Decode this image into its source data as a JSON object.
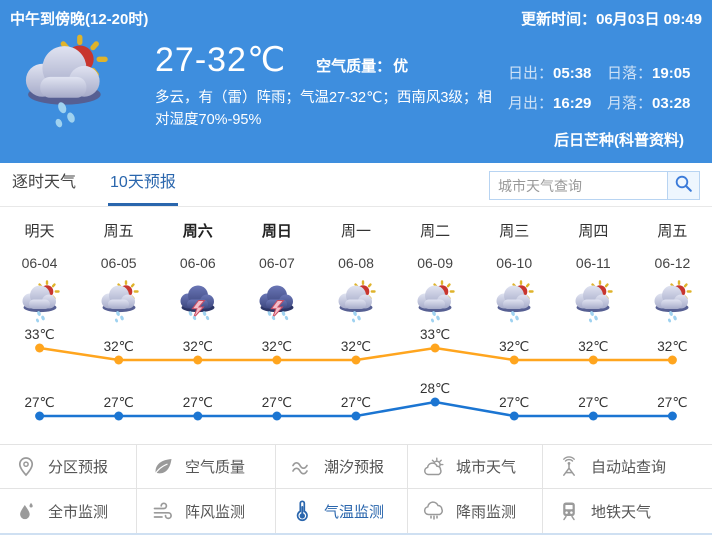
{
  "colors": {
    "header_bg": "#3e8ede",
    "accent_blue": "#2a66ad",
    "high_line": "#ffa51e",
    "low_line": "#1b75d2"
  },
  "header": {
    "period": "中午到傍晚(12-20时)",
    "update_time": "更新时间：06月03日 09:49",
    "temp_range": "27-32℃",
    "aqi_label": "空气质量：",
    "aqi_value": "优",
    "description": "多云，有（雷）阵雨；气温27-32℃；西南风3级；相对湿度70%-95%",
    "weather_icon": "cloud-sun-rain-icon",
    "sun_moon": {
      "sunrise_label": "日出：",
      "sunrise": "05:38",
      "sunset_label": "日落：",
      "sunset": "19:05",
      "moonrise_label": "月出：",
      "moonrise": "16:29",
      "moonset_label": "月落：",
      "moonset": "03:28"
    },
    "solar_term": "后日芒种(科普资料)"
  },
  "tabs": [
    {
      "key": "hourly-weather",
      "label": "逐时天气",
      "active": false
    },
    {
      "key": "ten-day-forecast",
      "label": "10天预报",
      "active": true
    }
  ],
  "search": {
    "placeholder": "城市天气查询",
    "icon": "search-icon"
  },
  "forecast": {
    "days": [
      {
        "name": "明天",
        "date": "06-04",
        "icon": "cloud-sun-rain-icon",
        "bold": false
      },
      {
        "name": "周五",
        "date": "06-05",
        "icon": "cloud-sun-rain-icon",
        "bold": false
      },
      {
        "name": "周六",
        "date": "06-06",
        "icon": "thunder-rain-icon",
        "bold": true
      },
      {
        "name": "周日",
        "date": "06-07",
        "icon": "thunder-rain-icon",
        "bold": true
      },
      {
        "name": "周一",
        "date": "06-08",
        "icon": "cloud-sun-rain-icon",
        "bold": false
      },
      {
        "name": "周二",
        "date": "06-09",
        "icon": "cloud-sun-rain-icon",
        "bold": false
      },
      {
        "name": "周三",
        "date": "06-10",
        "icon": "cloud-sun-rain-icon",
        "bold": false
      },
      {
        "name": "周四",
        "date": "06-11",
        "icon": "cloud-sun-rain-icon",
        "bold": false
      },
      {
        "name": "周五",
        "date": "06-12",
        "icon": "cloud-sun-rain-icon",
        "bold": false
      }
    ]
  },
  "chart_data": [
    {
      "type": "line",
      "name": "最高气温",
      "categories": [
        "06-04",
        "06-05",
        "06-06",
        "06-07",
        "06-08",
        "06-09",
        "06-10",
        "06-11",
        "06-12"
      ],
      "values": [
        33,
        32,
        32,
        32,
        32,
        33,
        32,
        32,
        32
      ],
      "unit": "℃",
      "color": "#ffa51e",
      "ylim": [
        31,
        34
      ],
      "grid": false,
      "legend": "none"
    },
    {
      "type": "line",
      "name": "最低气温",
      "categories": [
        "06-04",
        "06-05",
        "06-06",
        "06-07",
        "06-08",
        "06-09",
        "06-10",
        "06-11",
        "06-12"
      ],
      "values": [
        27,
        27,
        27,
        27,
        27,
        28,
        27,
        27,
        27
      ],
      "unit": "℃",
      "color": "#1b75d2",
      "ylim": [
        26,
        29
      ],
      "grid": false,
      "legend": "none"
    }
  ],
  "menu": {
    "rows": [
      [
        {
          "key": "zone-forecast",
          "label": "分区预报",
          "icon": "map-pin-icon",
          "active": false
        },
        {
          "key": "air-quality",
          "label": "空气质量",
          "icon": "leaf-icon",
          "active": false
        },
        {
          "key": "tide-forecast",
          "label": "潮汐预报",
          "icon": "wave-icon",
          "active": false
        },
        {
          "key": "city-weather",
          "label": "城市天气",
          "icon": "sun-cloud-icon",
          "active": false
        },
        {
          "key": "auto-station-query",
          "label": "自动站查询",
          "icon": "station-icon",
          "active": false
        }
      ],
      [
        {
          "key": "citywide-monitoring",
          "label": "全市监测",
          "icon": "droplet-icon",
          "active": false
        },
        {
          "key": "gust-monitoring",
          "label": "阵风监测",
          "icon": "wind-icon",
          "active": false
        },
        {
          "key": "temperature-monitoring",
          "label": "气温监测",
          "icon": "thermometer-icon",
          "active": true
        },
        {
          "key": "rainfall-monitoring",
          "label": "降雨监测",
          "icon": "rain-cloud-icon",
          "active": false
        },
        {
          "key": "metro-weather",
          "label": "地铁天气",
          "icon": "metro-icon",
          "active": false
        }
      ]
    ]
  }
}
